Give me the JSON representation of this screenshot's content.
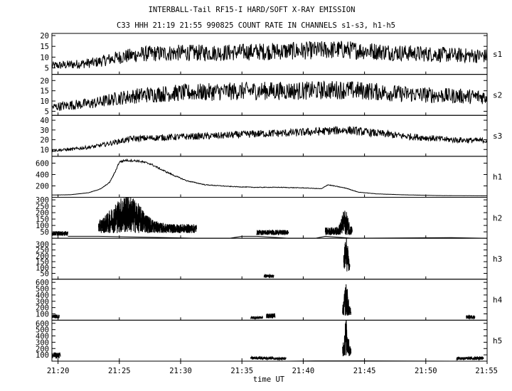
{
  "title_line1": "INTERBALL-Tail RF15-I HARD/SOFT X-RAY EMISSION",
  "title_line2": "C33 HHH 21:19 21:55 990825  COUNT RATE IN CHANNELS s1-s3, h1-h5",
  "chart_data": {
    "type": "line",
    "title": "INTERBALL-Tail RF15-I HARD/SOFT X-RAY EMISSION",
    "subtitle": "C33 HHH 21:19 21:55 990825  COUNT RATE IN CHANNELS s1-s3, h1-h5",
    "xlabel": "time UT",
    "x_unit": "minutes after 21:00 UT",
    "xlim": [
      19.5,
      55
    ],
    "x_ticks": [
      20,
      25,
      30,
      35,
      40,
      45,
      50,
      55
    ],
    "x_tick_labels": [
      "21:20",
      "21:25",
      "21:30",
      "21:35",
      "21:40",
      "21:45",
      "21:50",
      "21:55"
    ],
    "grid": false,
    "panels": [
      {
        "name": "s1",
        "ylim": [
          2,
          21
        ],
        "yticks": [
          5,
          10,
          15,
          20
        ],
        "noise": 0.32,
        "points": [
          [
            19.5,
            6
          ],
          [
            21,
            6.5
          ],
          [
            23,
            7.5
          ],
          [
            25,
            10
          ],
          [
            27,
            11.5
          ],
          [
            30,
            12
          ],
          [
            33,
            12
          ],
          [
            36,
            12.5
          ],
          [
            40,
            13
          ],
          [
            43,
            13.5
          ],
          [
            45,
            13
          ],
          [
            48,
            12
          ],
          [
            52,
            11
          ],
          [
            55,
            10.5
          ]
        ]
      },
      {
        "name": "s2",
        "ylim": [
          3,
          23
        ],
        "yticks": [
          5,
          10,
          15,
          20
        ],
        "noise": 0.3,
        "points": [
          [
            19.5,
            7
          ],
          [
            21,
            8
          ],
          [
            23,
            9
          ],
          [
            25,
            11.5
          ],
          [
            27,
            13
          ],
          [
            30,
            14
          ],
          [
            33,
            14.5
          ],
          [
            36,
            15
          ],
          [
            40,
            15
          ],
          [
            43,
            15.5
          ],
          [
            45,
            15
          ],
          [
            48,
            13.5
          ],
          [
            52,
            12.5
          ],
          [
            55,
            12
          ]
        ]
      },
      {
        "name": "s3",
        "ylim": [
          3,
          45
        ],
        "yticks": [
          10,
          20,
          30,
          40
        ],
        "noise": 0.15,
        "points": [
          [
            19.5,
            9
          ],
          [
            21,
            10
          ],
          [
            23,
            13
          ],
          [
            24.5,
            17
          ],
          [
            26,
            21
          ],
          [
            28,
            22
          ],
          [
            30,
            23
          ],
          [
            33,
            24
          ],
          [
            36,
            26
          ],
          [
            39,
            27
          ],
          [
            42,
            29
          ],
          [
            43.5,
            30
          ],
          [
            45,
            28
          ],
          [
            48,
            24
          ],
          [
            52,
            20
          ],
          [
            55,
            19
          ]
        ]
      },
      {
        "name": "h1",
        "ylim": [
          0,
          720
        ],
        "yticks": [
          200,
          400,
          600
        ],
        "noise": 0.03,
        "points": [
          [
            19.5,
            40
          ],
          [
            21,
            45
          ],
          [
            22.5,
            80
          ],
          [
            23.5,
            150
          ],
          [
            24.2,
            260
          ],
          [
            24.6,
            420
          ],
          [
            25,
            620
          ],
          [
            25.5,
            650
          ],
          [
            26.5,
            640
          ],
          [
            27.5,
            590
          ],
          [
            28.5,
            480
          ],
          [
            29.5,
            380
          ],
          [
            30.5,
            290
          ],
          [
            32,
            220
          ],
          [
            34,
            190
          ],
          [
            36,
            175
          ],
          [
            38,
            175
          ],
          [
            40,
            165
          ],
          [
            41.5,
            150
          ],
          [
            42,
            220
          ],
          [
            42.5,
            200
          ],
          [
            43.5,
            160
          ],
          [
            44.5,
            90
          ],
          [
            46,
            60
          ],
          [
            48,
            45
          ],
          [
            51,
            30
          ],
          [
            55,
            25
          ]
        ]
      },
      {
        "name": "h2",
        "ylim": [
          0,
          320
        ],
        "yticks": [
          50,
          100,
          150,
          200,
          250,
          300
        ],
        "noise": 0,
        "points": [],
        "bursts": [
          {
            "t0": 19.5,
            "t1": 20.8,
            "level": 20,
            "amp": 35
          },
          {
            "t0": 23.3,
            "t1": 31.3,
            "level": 40,
            "amp": 70,
            "peak": 25.6,
            "peak_amp": 230,
            "peak_width": 1.6
          },
          {
            "t0": 36.2,
            "t1": 38.8,
            "level": 25,
            "amp": 40
          },
          {
            "t0": 41.8,
            "t1": 44,
            "level": 25,
            "amp": 60,
            "peak": 43.4,
            "peak_amp": 140,
            "peak_width": 0.35
          }
        ],
        "baseline": [
          [
            20.8,
            15
          ],
          [
            23.3,
            15
          ],
          [
            31.3,
            0
          ],
          [
            34,
            0
          ],
          [
            35,
            15
          ],
          [
            36.2,
            15
          ],
          [
            38.8,
            0
          ],
          [
            41,
            0
          ],
          [
            41.8,
            15
          ],
          [
            44,
            0
          ],
          [
            52,
            5
          ],
          [
            55,
            0
          ]
        ]
      },
      {
        "name": "h3",
        "ylim": [
          0,
          350
        ],
        "yticks": [
          50,
          100,
          150,
          200,
          250,
          300
        ],
        "noise": 0,
        "points": [],
        "bursts": [
          {
            "t0": 36.8,
            "t1": 37.6,
            "level": 10,
            "amp": 30
          },
          {
            "t0": 43.3,
            "t1": 43.8,
            "level": 60,
            "amp": 60,
            "peak": 43.5,
            "peak_amp": 250,
            "peak_width": 0.2
          }
        ],
        "baseline": []
      },
      {
        "name": "h4",
        "ylim": [
          0,
          650
        ],
        "yticks": [
          100,
          200,
          300,
          400,
          500,
          600
        ],
        "noise": 0,
        "points": [],
        "bursts": [
          {
            "t0": 19.5,
            "t1": 20.1,
            "level": 30,
            "amp": 60
          },
          {
            "t0": 35.7,
            "t1": 36.7,
            "level": 20,
            "amp": 40
          },
          {
            "t0": 37,
            "t1": 37.7,
            "level": 30,
            "amp": 80
          },
          {
            "t0": 43.2,
            "t1": 43.9,
            "level": 60,
            "amp": 120,
            "peak": 43.5,
            "peak_amp": 420,
            "peak_width": 0.2
          },
          {
            "t0": 53.3,
            "t1": 54,
            "level": 20,
            "amp": 60
          }
        ],
        "baseline": []
      },
      {
        "name": "h5",
        "ylim": [
          0,
          650
        ],
        "yticks": [
          100,
          200,
          300,
          400,
          500,
          600
        ],
        "noise": 0,
        "points": [],
        "bursts": [
          {
            "t0": 19.5,
            "t1": 20.2,
            "level": 40,
            "amp": 100
          },
          {
            "t0": 35.7,
            "t1": 37.6,
            "level": 25,
            "amp": 50
          },
          {
            "t0": 37.6,
            "t1": 38.6,
            "level": 20,
            "amp": 40
          },
          {
            "t0": 43.2,
            "t1": 43.9,
            "level": 70,
            "amp": 150,
            "peak": 43.5,
            "peak_amp": 470,
            "peak_width": 0.2
          },
          {
            "t0": 52.5,
            "t1": 54.7,
            "level": 20,
            "amp": 50
          }
        ],
        "baseline": [
          [
            38.6,
            0
          ],
          [
            41,
            5
          ],
          [
            45,
            5
          ],
          [
            52.5,
            0
          ]
        ]
      }
    ]
  }
}
